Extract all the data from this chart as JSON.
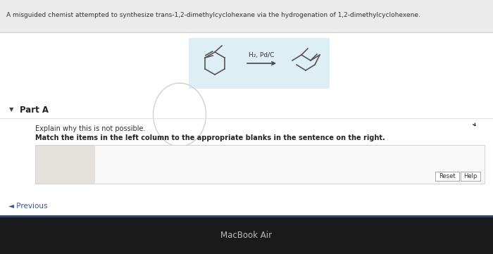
{
  "overall_bg": "#c8c8c8",
  "white_bg": "#ffffff",
  "title_text": "A misguided chemist attempted to synthesize trans-1,2-dimethylcyclohexane via the hydrogenation of 1,2-dimethylcyclohexene.",
  "title_fontsize": 6.5,
  "reaction_label": "H₂, Pd/C",
  "reaction_label_fontsize": 6.5,
  "part_a_label": "Part A",
  "explain_text": "Explain why this is not possible.",
  "explain_fontsize": 7.0,
  "match_text": "Match the items in the left column to the appropriate blanks in the sentence on the right.",
  "match_fontsize": 7.0,
  "reset_btn": "Reset",
  "help_btn": "Help",
  "prev_text": "◄ Previous",
  "macbook_text": "MacBook Air",
  "footer_bg": "#1a1a1a",
  "footer_text_color": "#bbbbbb",
  "reaction_box_color": "#ddeef5",
  "title_bar_bg": "#e0e0e0",
  "content_bg": "#f0f0f0",
  "circle_color": "#d0d0d0",
  "match_box_bg": "#f8f8f8",
  "match_box_border": "#cccccc",
  "btn_border": "#999999"
}
